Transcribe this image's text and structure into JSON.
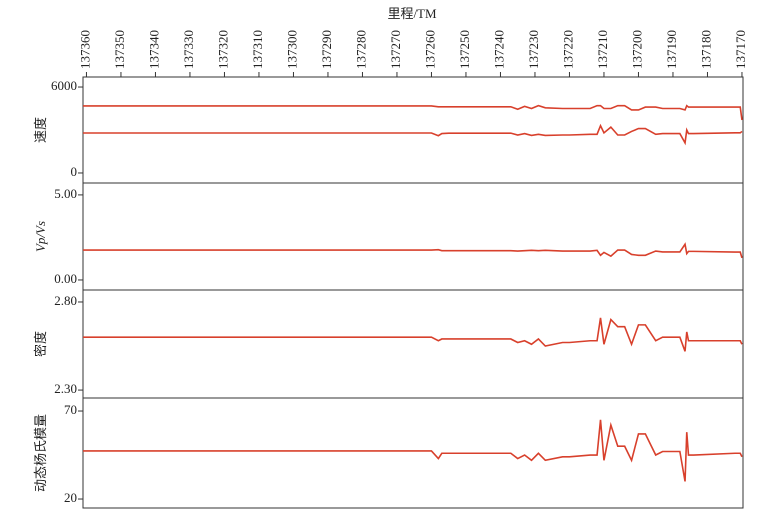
{
  "chart_data": [
    {
      "type": "line",
      "xlabel": "里程/TM",
      "ylabel": "速度",
      "xlim": [
        137361,
        137169.7
      ],
      "xticks": [
        137360,
        137350,
        137340,
        137330,
        137320,
        137310,
        137300,
        137290,
        137280,
        137270,
        137260,
        137250,
        137240,
        137230,
        137220,
        137210,
        137200,
        137190,
        137180,
        137170
      ],
      "x": [
        137361,
        137260,
        137258,
        137257,
        137255,
        137237,
        137235,
        137233,
        137231,
        137229,
        137227,
        137222,
        137220,
        137214,
        137212,
        137211,
        137210,
        137208,
        137206,
        137204,
        137202,
        137200,
        137198,
        137195,
        137193,
        137188,
        137186.5,
        137186,
        137185.5,
        137184,
        137172,
        137170.5,
        137170
      ],
      "ylim": [
        -700,
        6700
      ],
      "yticks": [
        0,
        6000
      ],
      "series": [
        {
          "color": "#d8402c",
          "values": [
            4680,
            4680,
            4620,
            4620,
            4620,
            4620,
            4450,
            4650,
            4500,
            4700,
            4550,
            4500,
            4500,
            4500,
            4700,
            4700,
            4500,
            4500,
            4700,
            4700,
            4400,
            4400,
            4600,
            4600,
            4500,
            4500,
            4400,
            4700,
            4600,
            4600,
            4600,
            4600,
            3700
          ]
        },
        {
          "color": "#d8402c",
          "values": [
            2790,
            2790,
            2600,
            2750,
            2780,
            2780,
            2650,
            2750,
            2620,
            2700,
            2620,
            2650,
            2650,
            2700,
            2700,
            3300,
            2800,
            3200,
            2650,
            2650,
            2900,
            3100,
            3100,
            2700,
            2750,
            2750,
            2100,
            3000,
            2750,
            2750,
            2800,
            2800,
            2900
          ]
        }
      ]
    },
    {
      "type": "line",
      "ylabel": "Vp/Vs",
      "ylim": [
        -0.59,
        5.7
      ],
      "yticks": [
        {
          "value": 0,
          "label": "0.00"
        },
        {
          "value": 5,
          "label": "5.00"
        }
      ],
      "series": [
        {
          "color": "#d8402c",
          "values": [
            1.76,
            1.76,
            1.78,
            1.72,
            1.72,
            1.72,
            1.7,
            1.72,
            1.74,
            1.72,
            1.74,
            1.7,
            1.7,
            1.7,
            1.74,
            1.45,
            1.62,
            1.4,
            1.76,
            1.76,
            1.5,
            1.45,
            1.45,
            1.7,
            1.65,
            1.65,
            2.1,
            1.55,
            1.68,
            1.68,
            1.64,
            1.64,
            1.3
          ]
        }
      ]
    },
    {
      "type": "line",
      "ylabel": "密度",
      "ylim": [
        2.255,
        2.868
      ],
      "yticks": [
        {
          "value": 2.3,
          "label": "2.30"
        },
        {
          "value": 2.8,
          "label": "2.80"
        }
      ],
      "series": [
        {
          "color": "#d8402c",
          "values": [
            2.6,
            2.6,
            2.58,
            2.59,
            2.59,
            2.59,
            2.57,
            2.58,
            2.56,
            2.59,
            2.55,
            2.57,
            2.57,
            2.58,
            2.58,
            2.71,
            2.56,
            2.7,
            2.66,
            2.66,
            2.56,
            2.67,
            2.67,
            2.58,
            2.6,
            2.6,
            2.52,
            2.63,
            2.58,
            2.58,
            2.58,
            2.58,
            2.56
          ]
        }
      ]
    },
    {
      "type": "line",
      "ylabel": "动态杨氏模量",
      "ylim": [
        14.9,
        77.4
      ],
      "yticks": [
        20,
        70
      ],
      "series": [
        {
          "color": "#d8402c",
          "values": [
            47.3,
            47.3,
            43,
            46,
            46,
            46,
            43,
            45,
            42,
            46,
            42,
            44,
            44,
            45,
            45,
            65,
            42,
            62,
            50,
            50,
            42,
            57,
            57,
            45,
            47,
            47,
            30,
            58,
            45,
            45,
            46,
            46,
            44
          ]
        }
      ]
    }
  ]
}
